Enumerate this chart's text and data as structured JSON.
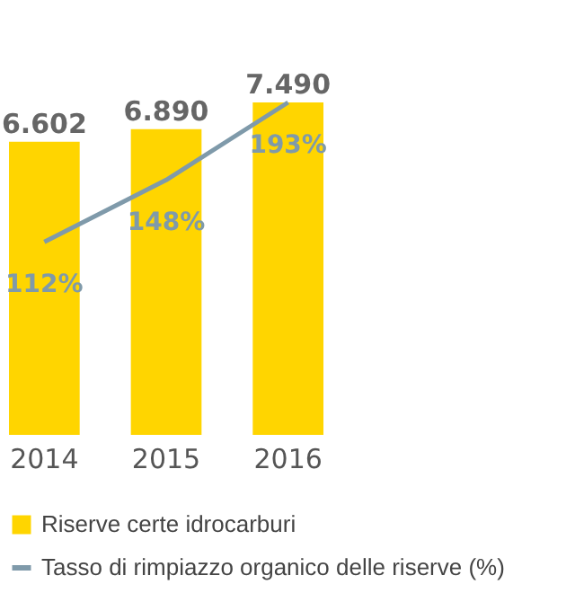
{
  "chart_data": {
    "type": "bar",
    "categories": [
      "2014",
      "2015",
      "2016"
    ],
    "series": [
      {
        "name": "Riserve certe idrocarburi",
        "color": "#ffd500",
        "values": [
          6602,
          6890,
          7490
        ],
        "value_labels": [
          "6.602",
          "6.890",
          "7.490"
        ]
      },
      {
        "name": "Tasso di rimpiazzo organico delle riserve (%)",
        "type": "line",
        "axis": "y2",
        "color": "#7f9aaa",
        "values": [
          112,
          148,
          193
        ],
        "value_labels": [
          "112%",
          "148%",
          "193%"
        ]
      }
    ],
    "legend": "bottom",
    "tick_labels": "x"
  }
}
